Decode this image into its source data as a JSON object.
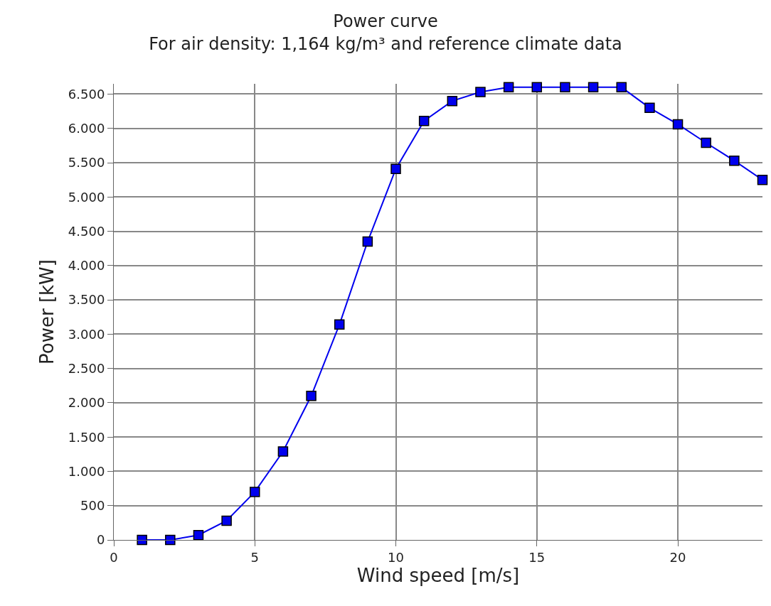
{
  "chart_data": {
    "type": "line",
    "title": "Power curve",
    "subtitle": "For air density: 1,164 kg/m³ and reference climate data",
    "xlabel": "Wind speed [m/s]",
    "ylabel": "Power [kW]",
    "x": [
      1,
      2,
      3,
      4,
      5,
      6,
      7,
      8,
      9,
      10,
      11,
      12,
      13,
      14,
      15,
      16,
      17,
      18,
      19,
      20,
      21,
      22,
      23
    ],
    "series": [
      {
        "color": "#0000ee",
        "values": [
          0,
          0,
          70,
          280,
          700,
          1290,
          2100,
          3140,
          4350,
          5410,
          6110,
          6400,
          6530,
          6600,
          6600,
          6600,
          6600,
          6600,
          6300,
          6060,
          5790,
          5530,
          5250
        ]
      }
    ],
    "xlim": [
      0,
      23
    ],
    "xticks": [
      0,
      5,
      10,
      15,
      20
    ],
    "ylim": [
      0,
      6650
    ],
    "yticks": [
      0,
      500,
      {
        "value": 1000,
        "label": "1.000"
      },
      {
        "value": 1500,
        "label": "1.500"
      },
      {
        "value": 2000,
        "label": "2.000"
      },
      {
        "value": 2500,
        "label": "2.500"
      },
      {
        "value": 3000,
        "label": "3.000"
      },
      {
        "value": 3500,
        "label": "3.500"
      },
      {
        "value": 4000,
        "label": "4.000"
      },
      {
        "value": 4500,
        "label": "4.500"
      },
      {
        "value": 5000,
        "label": "5.000"
      },
      {
        "value": 5500,
        "label": "5.500"
      },
      {
        "value": 6000,
        "label": "6.000"
      },
      {
        "value": 6500,
        "label": "6.500"
      }
    ],
    "grid": true,
    "marker": "square",
    "line_style": "solid"
  }
}
